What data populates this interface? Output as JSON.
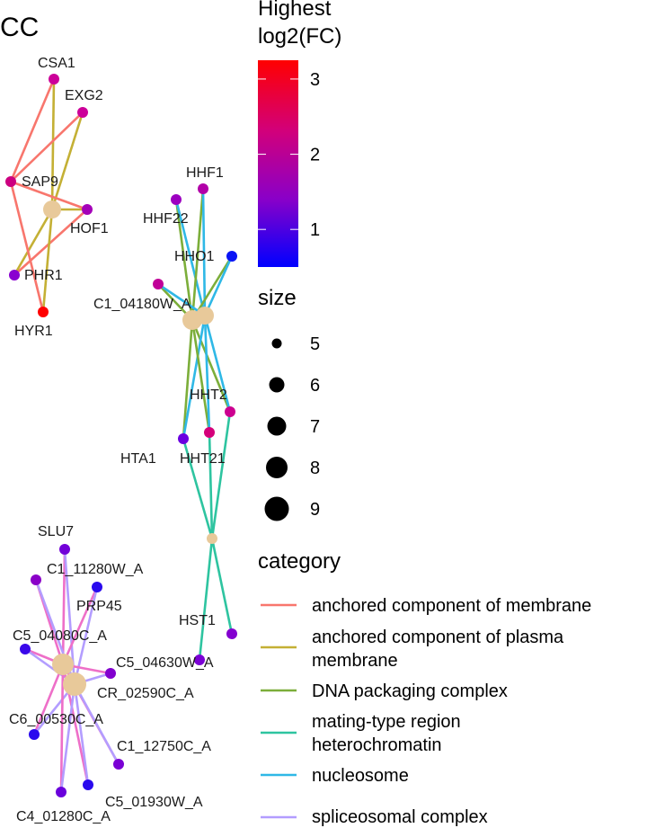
{
  "title": "CC",
  "colors": {
    "anchored component of membrane": "#F8766D",
    "anchored component of plasma membrane": "#C4B035",
    "DNA packaging complex": "#7CAE3A",
    "mating-type region heterochromatin": "#2EC4A0",
    "nucleosome": "#2FB8E6",
    "spliceosomal complex": "#B39DFF",
    "spliceosomal_pink": "#EE6FC8",
    "hub": "#E8C99A"
  },
  "legend": {
    "fc": {
      "title_line1": "Highest",
      "title_line2": "log2(FC)",
      "ticks": [
        "3",
        "2",
        "1"
      ],
      "range": [
        0.5,
        3.25
      ],
      "tick_values": [
        3,
        2,
        1
      ],
      "gradient": [
        "#0000FF",
        "#8A00C8",
        "#D2007A",
        "#FF0000"
      ]
    },
    "size": {
      "title": "size",
      "items": [
        "5",
        "6",
        "7",
        "8",
        "9"
      ]
    },
    "category": {
      "title": "category",
      "items": [
        {
          "line1": "anchored component of membrane",
          "line2": "",
          "color": "#F8766D"
        },
        {
          "line1": "anchored component of plasma",
          "line2": "membrane",
          "color": "#C4B035"
        },
        {
          "line1": "DNA packaging complex",
          "line2": "",
          "color": "#7CAE3A"
        },
        {
          "line1": "mating-type region",
          "line2": "heterochromatin",
          "color": "#2EC4A0"
        },
        {
          "line1": "nucleosome",
          "line2": "",
          "color": "#2FB8E6"
        },
        {
          "line1": "spliceosomal complex",
          "line2": "",
          "color": "#B39DFF"
        }
      ]
    }
  },
  "genes": [
    {
      "id": "CSA1",
      "label": "CSA1",
      "color": "#CC0099"
    },
    {
      "id": "EXG2",
      "label": "EXG2",
      "color": "#CC0099"
    },
    {
      "id": "SAP9",
      "label": "SAP9",
      "color": "#CC0080"
    },
    {
      "id": "HOF1",
      "label": "HOF1",
      "color": "#A400B8"
    },
    {
      "id": "PHR1",
      "label": "PHR1",
      "color": "#8A00D0"
    },
    {
      "id": "HYR1",
      "label": "HYR1",
      "color": "#FF0000"
    },
    {
      "id": "HHF1",
      "label": "HHF1",
      "color": "#B200A8"
    },
    {
      "id": "HHF22",
      "label": "HHF22",
      "color": "#9C00C0"
    },
    {
      "id": "HHO1",
      "label": "HHO1",
      "color": "#0A14F5"
    },
    {
      "id": "C1_04180W_A",
      "label": "C1_04180W_A",
      "color": "#C00098"
    },
    {
      "id": "HHT2",
      "label": "HHT2",
      "color": "#CC0090"
    },
    {
      "id": "HTA1",
      "label": "HTA1",
      "color": "#6A00E0"
    },
    {
      "id": "HHT21",
      "label": "HHT21",
      "color": "#D4007A"
    },
    {
      "id": "HST1",
      "label": "HST1",
      "color": "#8400D0"
    },
    {
      "id": "SLU7",
      "label": "SLU7",
      "color": "#7200D8"
    },
    {
      "id": "C1_11280W_A",
      "label": "C1_11280W_A",
      "color": "#8A00C8"
    },
    {
      "id": "PRP45",
      "label": "PRP45",
      "color": "#2A0AEE"
    },
    {
      "id": "C5_04080C_A",
      "label": "C5_04080C_A",
      "color": "#3A08EA"
    },
    {
      "id": "C5_04630W_A",
      "label": "C5_04630W_A",
      "color": "#7A00D4"
    },
    {
      "id": "CR_02590C_A",
      "label": "CR_02590C_A",
      "color": "#8200CE"
    },
    {
      "id": "C6_00530C_A",
      "label": "C6_00530C_A",
      "color": "#2A0AEE"
    },
    {
      "id": "C1_12750C_A",
      "label": "C1_12750C_A",
      "color": "#7A00D4"
    },
    {
      "id": "C5_01930W_A",
      "label": "C5_01930W_A",
      "color": "#2A0AEE"
    },
    {
      "id": "C4_01280C_A",
      "label": "C4_01280C_A",
      "color": "#6A00DC"
    }
  ]
}
